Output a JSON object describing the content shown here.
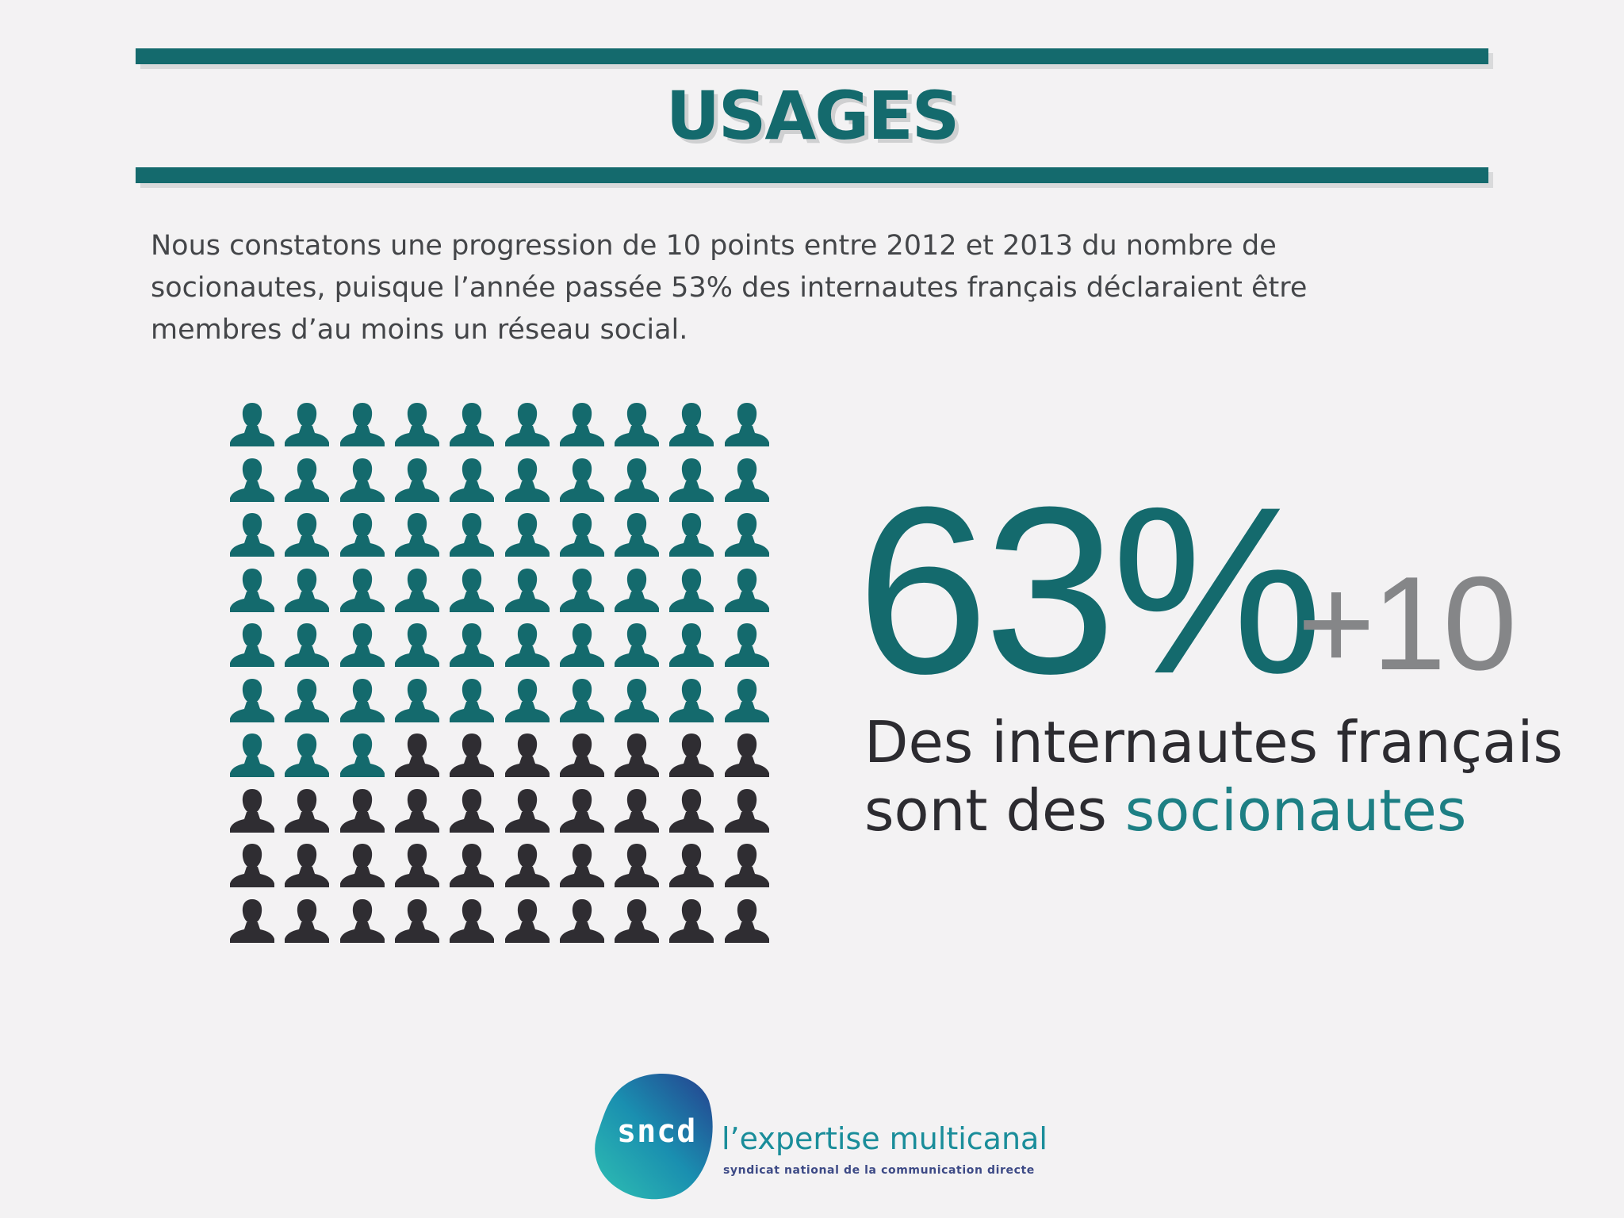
{
  "header": {
    "title": "USAGES"
  },
  "intro": {
    "text": "Nous constatons une progression de 10 points entre 2012 et 2013 du nombre de socionautes, puisque l’année passée 53% des internautes français déclaraient être membres d’au moins un réseau social."
  },
  "stat": {
    "value": "63%",
    "delta": "+10",
    "caption_line1": "Des internautes français",
    "caption_line2_prefix": "sont des ",
    "caption_highlight": "socionautes"
  },
  "pictogram": {
    "total": 100,
    "highlighted": 63,
    "highlight_color": "#146a6d",
    "base_color": "#2f2d32",
    "icon": "person-icon"
  },
  "colors": {
    "accent": "#146a6d",
    "accent_light": "#1d7f84",
    "delta": "#858688",
    "text": "#444649"
  },
  "logo": {
    "mark": "sncd",
    "tagline": "l’expertise multicanal",
    "subtitle": "syndicat national de la communication directe"
  }
}
